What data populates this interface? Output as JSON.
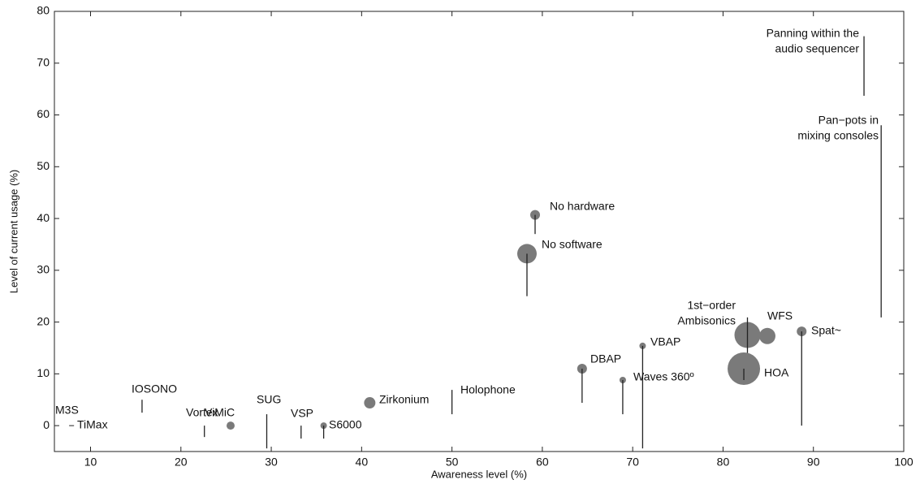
{
  "chart_data": {
    "type": "scatter",
    "x_label": "Awareness level (%)",
    "y_label": "Level of current usage (%)",
    "xlim": [
      6,
      100
    ],
    "ylim": [
      -5,
      80
    ],
    "xticks": [
      10,
      20,
      30,
      40,
      50,
      60,
      70,
      80,
      90,
      100
    ],
    "yticks": [
      0,
      10,
      20,
      30,
      40,
      50,
      60,
      70,
      80
    ],
    "color": "#7a7a7a",
    "points": [
      {
        "label": [
          "Panning within the",
          "audio sequencer"
        ],
        "x": 95.6,
        "y": null,
        "size": null,
        "line": [
          75.2,
          63.7
        ]
      },
      {
        "label": [
          "Pan−pots in",
          "mixing consoles"
        ],
        "x": 97.5,
        "y": null,
        "size": null,
        "line": [
          58.0,
          20.9
        ]
      },
      {
        "label": [
          "No hardware"
        ],
        "x": 59.2,
        "y": 40.7,
        "size": 6,
        "line": [
          40.7,
          37.0
        ]
      },
      {
        "label": [
          "No software"
        ],
        "x": 58.3,
        "y": 33.2,
        "size": 12,
        "line": [
          33.2,
          25.0
        ]
      },
      {
        "label": [
          "Spat~"
        ],
        "x": 88.7,
        "y": 18.2,
        "size": 6,
        "line": [
          18.2,
          0
        ]
      },
      {
        "label": [
          "WFS"
        ],
        "x": 84.9,
        "y": 17.3,
        "size": 10,
        "line": null
      },
      {
        "label": [
          "1st−order",
          "Ambisonics"
        ],
        "x": 82.7,
        "y": 17.5,
        "size": 16,
        "line": [
          20.9,
          11.3
        ]
      },
      {
        "label": [
          "HOA"
        ],
        "x": 82.3,
        "y": 11.0,
        "size": 20,
        "line": [
          11.0,
          8.8
        ]
      },
      {
        "label": [
          "VBAP"
        ],
        "x": 71.1,
        "y": 15.4,
        "size": 4,
        "line": [
          15.4,
          -4.4
        ]
      },
      {
        "label": [
          "Waves 360º"
        ],
        "x": 68.9,
        "y": 8.8,
        "size": 4,
        "line": [
          8.8,
          2.2
        ]
      },
      {
        "label": [
          "DBAP"
        ],
        "x": 64.4,
        "y": 11.0,
        "size": 6,
        "line": [
          11.0,
          4.4
        ]
      },
      {
        "label": [
          "Holophone"
        ],
        "x": 50.0,
        "y": null,
        "size": null,
        "line": [
          6.9,
          2.2
        ]
      },
      {
        "label": [
          "Zirkonium"
        ],
        "x": 40.9,
        "y": 4.4,
        "size": 7,
        "line": null
      },
      {
        "label": [
          "S6000"
        ],
        "x": 35.8,
        "y": 0,
        "size": 4,
        "line": [
          0,
          -2.5
        ]
      },
      {
        "label": [
          "VSP"
        ],
        "x": 33.3,
        "y": null,
        "size": null,
        "line": [
          0,
          -2.5
        ]
      },
      {
        "label": [
          "SUG"
        ],
        "x": 29.5,
        "y": null,
        "size": null,
        "line": [
          2.2,
          -4.4
        ]
      },
      {
        "label": [
          "ViMiC"
        ],
        "x": 25.5,
        "y": 0,
        "size": 5,
        "line": null
      },
      {
        "label": [
          "Vortex"
        ],
        "x": 22.6,
        "y": null,
        "size": null,
        "line": [
          0,
          -2.2
        ]
      },
      {
        "label": [
          "IOSONO"
        ],
        "x": 15.7,
        "y": null,
        "size": null,
        "line": [
          5.0,
          2.5
        ]
      },
      {
        "label": [
          "M3S"
        ],
        "x": 7.9,
        "y": null,
        "size": null,
        "line": null
      },
      {
        "label": [
          "TiMax"
        ],
        "x": 7.9,
        "y": 0,
        "size": 1,
        "line": null
      }
    ]
  }
}
